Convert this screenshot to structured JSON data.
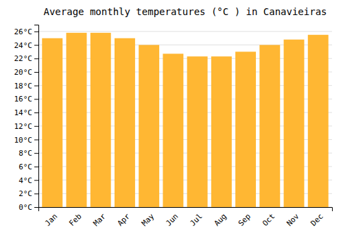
{
  "chart_data": {
    "type": "bar",
    "title": "Average monthly temperatures (°C ) in Canavieiras",
    "categories": [
      "Jan",
      "Feb",
      "Mar",
      "Apr",
      "May",
      "Jun",
      "Jul",
      "Aug",
      "Sep",
      "Oct",
      "Nov",
      "Dec"
    ],
    "values": [
      25.0,
      25.8,
      25.8,
      25.0,
      24.0,
      22.7,
      22.3,
      22.3,
      23.0,
      24.0,
      24.8,
      25.5
    ],
    "color": "#FFB733",
    "ylim": [
      0,
      27
    ],
    "yticks": [
      {
        "value": 0,
        "label": "0°C"
      },
      {
        "value": 2,
        "label": "2°C"
      },
      {
        "value": 4,
        "label": "4°C"
      },
      {
        "value": 6,
        "label": "6°C"
      },
      {
        "value": 8,
        "label": "8°C"
      },
      {
        "value": 10,
        "label": "10°C"
      },
      {
        "value": 12,
        "label": "12°C"
      },
      {
        "value": 14,
        "label": "14°C"
      },
      {
        "value": 16,
        "label": "16°C"
      },
      {
        "value": 18,
        "label": "18°C"
      },
      {
        "value": 20,
        "label": "20°C"
      },
      {
        "value": 22,
        "label": "22°C"
      },
      {
        "value": 24,
        "label": "24°C"
      },
      {
        "value": 26,
        "label": "26°C"
      }
    ],
    "grid": true
  }
}
